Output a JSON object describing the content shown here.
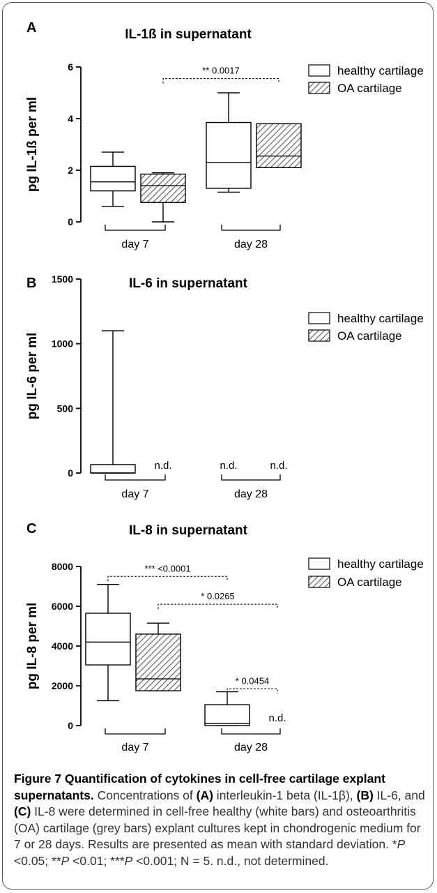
{
  "chart_data": [
    {
      "type": "box",
      "panel_letter": "A",
      "title": "IL-1ß in supernatant",
      "ylabel": "pg IL-1ß per ml",
      "ylim": [
        0,
        6
      ],
      "yticks": [
        "0",
        "2",
        "4",
        "6"
      ],
      "groups": [
        "day 7",
        "day 28"
      ],
      "legend": [
        "healthy cartilage",
        "OA cartilage"
      ],
      "boxes": [
        {
          "group": "day 7",
          "series": "healthy cartilage",
          "min": 0.6,
          "q1": 1.2,
          "median": 1.55,
          "q3": 2.15,
          "max": 2.7
        },
        {
          "group": "day 7",
          "series": "OA cartilage",
          "min": 0.0,
          "q1": 0.75,
          "median": 1.4,
          "q3": 1.85,
          "max": 1.9
        },
        {
          "group": "day 28",
          "series": "healthy cartilage",
          "min": 1.15,
          "q1": 1.3,
          "median": 2.3,
          "q3": 3.85,
          "max": 5.0
        },
        {
          "group": "day 28",
          "series": "OA cartilage",
          "min": 2.1,
          "q1": 2.1,
          "median": 2.55,
          "q3": 3.8,
          "max": 3.8
        }
      ],
      "annotations": [
        {
          "text": "** 0.0017",
          "from": 1,
          "to": 3,
          "y": 5.55
        }
      ],
      "nd_labels": []
    },
    {
      "type": "box",
      "panel_letter": "B",
      "title": "IL-6 in supernatant",
      "ylabel": "pg IL-6 per ml",
      "ylim": [
        0,
        1500
      ],
      "yticks": [
        "0",
        "500",
        "1000",
        "1500"
      ],
      "groups": [
        "day 7",
        "day 28"
      ],
      "legend": [
        "healthy cartilage",
        "OA cartilage"
      ],
      "boxes": [
        {
          "group": "day 7",
          "series": "healthy cartilage",
          "min": 0,
          "q1": 0,
          "median": 0,
          "q3": 65,
          "max": 1100
        }
      ],
      "annotations": [],
      "nd_labels": [
        {
          "text": "n.d.",
          "slot": 1
        },
        {
          "text": "n.d.",
          "slot": 2
        },
        {
          "text": "n.d.",
          "slot": 3
        }
      ]
    },
    {
      "type": "box",
      "panel_letter": "C",
      "title": "IL-8 in supernatant",
      "ylabel": "pg IL-8 per ml",
      "ylim": [
        0,
        8000
      ],
      "yticks": [
        "0",
        "2000",
        "4000",
        "6000",
        "8000"
      ],
      "groups": [
        "day 7",
        "day 28"
      ],
      "legend": [
        "healthy cartilage",
        "OA cartilage"
      ],
      "boxes": [
        {
          "group": "day 7",
          "series": "healthy cartilage",
          "min": 1250,
          "q1": 3050,
          "median": 4200,
          "q3": 5650,
          "max": 7100
        },
        {
          "group": "day 7",
          "series": "OA cartilage",
          "min": 1750,
          "q1": 1750,
          "median": 2350,
          "q3": 4600,
          "max": 5150
        },
        {
          "group": "day 28",
          "series": "healthy cartilage",
          "min": 0,
          "q1": 0,
          "median": 100,
          "q3": 1050,
          "max": 1700
        }
      ],
      "annotations": [
        {
          "text": "*** <0.0001",
          "from": 0,
          "to": 2,
          "y": 7500
        },
        {
          "text": "* 0.0265",
          "from": 1,
          "to": 3,
          "y": 6100
        },
        {
          "text": "* 0.0454",
          "from": 2,
          "to": 3,
          "y": 1850
        }
      ],
      "nd_labels": [
        {
          "text": "n.d.",
          "slot": 3
        }
      ]
    }
  ],
  "caption": {
    "title": "Figure 7 Quantification of cytokines in cell-free cartilage explant supernatants.",
    "body_1": " Concentrations of ",
    "ref_a": "(A)",
    "body_2": " interleukin-1 beta (IL-1β), ",
    "ref_b": "(B)",
    "body_3": " IL-6, and ",
    "ref_c": "(C)",
    "body_4": " IL-8 were determined in cell-free healthy (white bars) and osteoarthritis (OA) cartilage (grey bars) explant cultures kept in chondrogenic medium for 7 or 28 days. Results are presented as mean with standard deviation. *",
    "p": "P",
    "body_5": " <0.05; **",
    "body_6": " <0.01; ***",
    "body_7": " <0.001; N = 5. n.d., not determined."
  }
}
